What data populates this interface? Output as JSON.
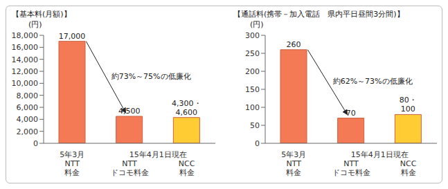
{
  "chart_data": [
    {
      "type": "bar",
      "title": "【基本料(月額)】",
      "y_label": "(円)",
      "categories": [
        "5年3月\nNTT\n料金",
        "NTT\nドコモ料金",
        "NCC\n料金"
      ],
      "x_group_label": "15年4月1日現在",
      "values": [
        17000,
        4500,
        4300
      ],
      "value_labels": [
        "17,000",
        "4,500",
        "4,300・4,600"
      ],
      "colors": [
        "#f47a55",
        "#f47a55",
        "#ffcc33"
      ],
      "ylim": [
        0,
        18000
      ],
      "yticks": [
        0,
        {
          "value": 2000,
          "label": "2,000"
        },
        {
          "value": 4000,
          "label": "4,000"
        },
        {
          "value": 6000,
          "label": "6,000"
        },
        {
          "value": 8000,
          "label": "8,000"
        },
        {
          "value": 10000,
          "label": "10,000"
        },
        {
          "value": 12000,
          "label": "12,000"
        },
        {
          "value": 14000,
          "label": "14,000"
        },
        {
          "value": 16000,
          "label": "16,000"
        },
        {
          "value": 18000,
          "label": "18,000"
        }
      ],
      "grid": false,
      "data_labels": true,
      "annotations": [
        "約73%～75%の低廉化"
      ]
    },
    {
      "type": "bar",
      "title": "【通話料(携帯－加入電話　県内平日昼間3分間)】",
      "y_label": "(円)",
      "categories": [
        "5年3月\nNTT\n料金",
        "NTT\nドコモ料金",
        "NCC\n料金"
      ],
      "x_group_label": "15年4月1日現在",
      "values": [
        260,
        70,
        80
      ],
      "value_labels": [
        "260",
        "70",
        "80・100"
      ],
      "colors": [
        "#f47a55",
        "#f47a55",
        "#ffcc33"
      ],
      "ylim": [
        0,
        300
      ],
      "yticks": [
        0,
        50,
        100,
        150,
        200,
        250,
        300
      ],
      "grid": false,
      "data_labels": true,
      "annotations": [
        "約62%～73%の低廉化"
      ]
    }
  ]
}
